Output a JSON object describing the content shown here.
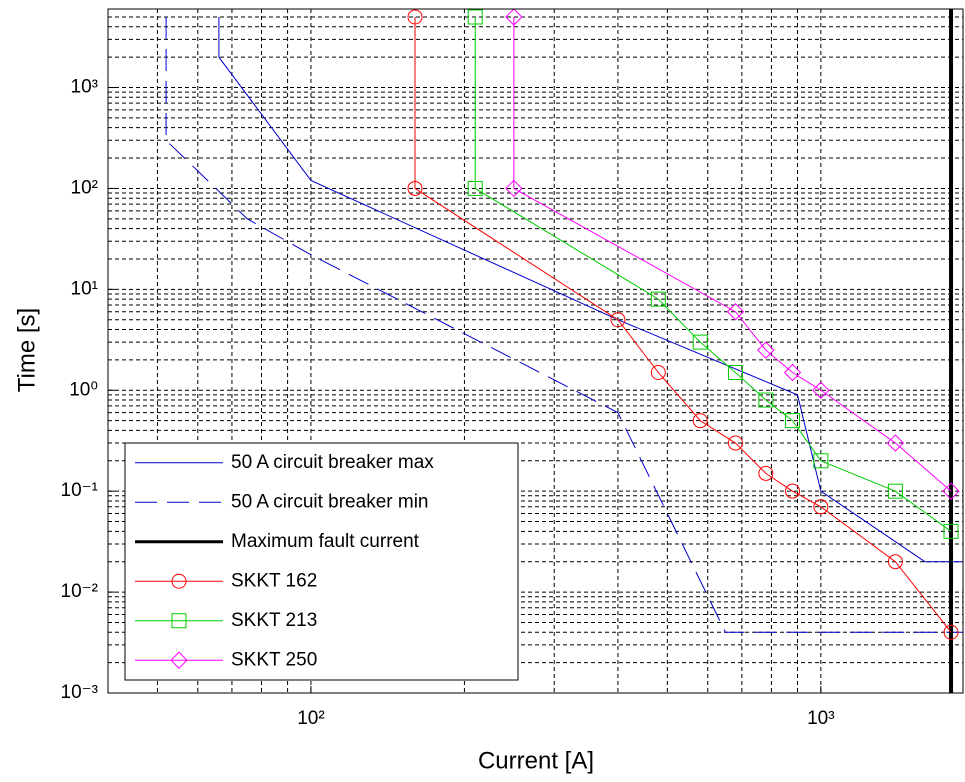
{
  "chart_data": {
    "type": "line",
    "xlabel": "Current [A]",
    "ylabel": "Time [s]",
    "xscale": "log",
    "yscale": "log",
    "xlim": [
      40,
      1900
    ],
    "ylim": [
      0.001,
      6000
    ],
    "xticks": [
      {
        "value": 100,
        "label": "10²"
      },
      {
        "value": 1000,
        "label": "10³"
      }
    ],
    "yticks": [
      {
        "value": 0.001,
        "label": "10⁻³"
      },
      {
        "value": 0.01,
        "label": "10⁻²"
      },
      {
        "value": 0.1,
        "label": "10⁻¹"
      },
      {
        "value": 1,
        "label": "10⁰"
      },
      {
        "value": 10,
        "label": "10¹"
      },
      {
        "value": 100,
        "label": "10²"
      },
      {
        "value": 1000,
        "label": "10³"
      }
    ],
    "grid": true,
    "minor_grid": true,
    "legend": "lower left",
    "series": [
      {
        "name": "50 A circuit breaker max",
        "color": "#0000cc",
        "linestyle": "solid",
        "marker": "none",
        "x": [
          66,
          66,
          100,
          400,
          900,
          1000,
          1600,
          1900
        ],
        "values": [
          5000,
          2000,
          120,
          5,
          0.9,
          0.1,
          0.02,
          0.02
        ]
      },
      {
        "name": "50 A circuit breaker min",
        "color": "#0000cc",
        "linestyle": "dashed",
        "marker": "none",
        "x": [
          52,
          52,
          75,
          100,
          400,
          650,
          1900
        ],
        "values": [
          5000,
          300,
          50,
          22,
          0.6,
          0.004,
          0.004
        ]
      },
      {
        "name": "Maximum fault current",
        "color": "#000000",
        "linestyle": "vline",
        "marker": "none",
        "x": [
          1800
        ]
      },
      {
        "name": "SKKT 162",
        "color": "#ff0000",
        "linestyle": "solid",
        "marker": "circle",
        "x": [
          160,
          160,
          400,
          480,
          580,
          680,
          780,
          880,
          1000,
          1400,
          1800
        ],
        "values": [
          5000,
          100,
          5,
          1.5,
          0.5,
          0.3,
          0.15,
          0.1,
          0.07,
          0.02,
          0.004
        ]
      },
      {
        "name": "SKKT 213",
        "color": "#00cc00",
        "linestyle": "solid",
        "marker": "square",
        "x": [
          210,
          210,
          480,
          580,
          680,
          780,
          880,
          1000,
          1400,
          1800
        ],
        "values": [
          5000,
          100,
          8,
          3,
          1.5,
          0.8,
          0.5,
          0.2,
          0.1,
          0.04
        ]
      },
      {
        "name": "SKKT 250",
        "color": "#ff00ff",
        "linestyle": "solid",
        "marker": "diamond",
        "x": [
          250,
          250,
          680,
          780,
          880,
          1000,
          1400,
          1800
        ],
        "values": [
          5000,
          100,
          6,
          2.5,
          1.5,
          1,
          0.3,
          0.1
        ]
      }
    ]
  }
}
